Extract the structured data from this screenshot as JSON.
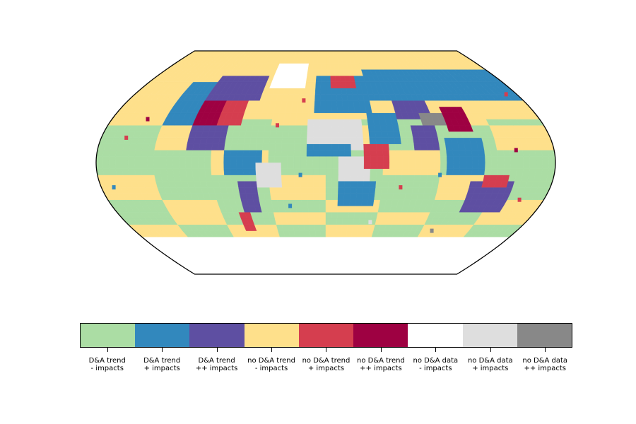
{
  "map": {
    "projection": "robinson",
    "category_keys": [
      "ga",
      "bl",
      "pu",
      "ye",
      "rd",
      "mr",
      "wh",
      "lg",
      "dg"
    ],
    "categories": [
      {
        "key": "ga",
        "line1": "D&A trend",
        "line2": "- impacts",
        "color": "#abdda4"
      },
      {
        "key": "bl",
        "line1": "D&A trend",
        "line2": "+ impacts",
        "color": "#3288bd"
      },
      {
        "key": "pu",
        "line1": "D&A trend",
        "line2": "++ impacts",
        "color": "#5e4fa2"
      },
      {
        "key": "ye",
        "line1": "no D&A trend",
        "line2": "- impacts",
        "color": "#fee08b"
      },
      {
        "key": "rd",
        "line1": "no D&A trend",
        "line2": "+ impacts",
        "color": "#d53e4f"
      },
      {
        "key": "mr",
        "line1": "no D&A trend",
        "line2": "++ impacts",
        "color": "#9e0142"
      },
      {
        "key": "wh",
        "line1": "no D&A data",
        "line2": "- impacts",
        "color": "#ffffff"
      },
      {
        "key": "lg",
        "line1": "no D&A data",
        "line2": "+ impacts",
        "color": "#dedede"
      },
      {
        "key": "dg",
        "line1": "no D&A data",
        "line2": "++ impacts",
        "color": "#888888"
      }
    ],
    "regions": [
      {
        "name": "south-ocean-white",
        "cat": "wh",
        "lon": [
          -180,
          180
        ],
        "lat": [
          -90,
          -58
        ]
      },
      {
        "name": "north-america-west",
        "cat": "bl",
        "lon": [
          -135,
          -110
        ],
        "lat": [
          30,
          65
        ]
      },
      {
        "name": "north-america-central",
        "cat": "mr",
        "lon": [
          -110,
          -88
        ],
        "lat": [
          30,
          52
        ]
      },
      {
        "name": "north-america-east",
        "cat": "rd",
        "lon": [
          -88,
          -70
        ],
        "lat": [
          30,
          48
        ]
      },
      {
        "name": "canada-north",
        "cat": "pu",
        "lon": [
          -110,
          -60
        ],
        "lat": [
          50,
          68
        ]
      },
      {
        "name": "central-america",
        "cat": "pu",
        "lon": [
          -110,
          -82
        ],
        "lat": [
          10,
          28
        ]
      },
      {
        "name": "greenland",
        "cat": "wh",
        "lon": [
          -55,
          -22
        ],
        "lat": [
          62,
          82
        ]
      },
      {
        "name": "south-america-north",
        "cat": "bl",
        "lon": [
          -78,
          -50
        ],
        "lat": [
          -12,
          10
        ]
      },
      {
        "name": "south-america-east",
        "cat": "lg",
        "lon": [
          -55,
          -36
        ],
        "lat": [
          -20,
          -2
        ]
      },
      {
        "name": "south-america-south",
        "cat": "pu",
        "lon": [
          -72,
          -55
        ],
        "lat": [
          -40,
          -15
        ]
      },
      {
        "name": "south-america-tip",
        "cat": "rd",
        "lon": [
          -75,
          -65
        ],
        "lat": [
          -55,
          -38
        ]
      },
      {
        "name": "europe",
        "cat": "bl",
        "lon": [
          -10,
          40
        ],
        "lat": [
          40,
          70
        ]
      },
      {
        "name": "scandinavia",
        "cat": "rd",
        "lon": [
          5,
          30
        ],
        "lat": [
          58,
          70
        ]
      },
      {
        "name": "north-africa",
        "cat": "lg",
        "lon": [
          -15,
          30
        ],
        "lat": [
          12,
          35
        ]
      },
      {
        "name": "west-africa",
        "cat": "bl",
        "lon": [
          -15,
          20
        ],
        "lat": [
          4,
          14
        ]
      },
      {
        "name": "central-africa",
        "cat": "lg",
        "lon": [
          10,
          35
        ],
        "lat": [
          -15,
          5
        ]
      },
      {
        "name": "east-africa",
        "cat": "rd",
        "lon": [
          30,
          50
        ],
        "lat": [
          -5,
          15
        ]
      },
      {
        "name": "southern-africa",
        "cat": "bl",
        "lon": [
          12,
          38
        ],
        "lat": [
          -35,
          -15
        ]
      },
      {
        "name": "middle-east",
        "cat": "bl",
        "lon": [
          35,
          60
        ],
        "lat": [
          15,
          40
        ]
      },
      {
        "name": "russia",
        "cat": "bl",
        "lon": [
          40,
          180
        ],
        "lat": [
          50,
          75
        ]
      },
      {
        "name": "central-asia",
        "cat": "pu",
        "lon": [
          60,
          90
        ],
        "lat": [
          35,
          50
        ]
      },
      {
        "name": "tibet",
        "cat": "dg",
        "lon": [
          80,
          100
        ],
        "lat": [
          28,
          38
        ]
      },
      {
        "name": "china",
        "cat": "mr",
        "lon": [
          100,
          120
        ],
        "lat": [
          25,
          45
        ]
      },
      {
        "name": "india",
        "cat": "pu",
        "lon": [
          70,
          90
        ],
        "lat": [
          8,
          28
        ]
      },
      {
        "name": "southeast-asia",
        "cat": "bl",
        "lon": [
          95,
          125
        ],
        "lat": [
          -8,
          20
        ]
      },
      {
        "name": "australia",
        "cat": "pu",
        "lon": [
          115,
          150
        ],
        "lat": [
          -38,
          -15
        ]
      },
      {
        "name": "australia-north",
        "cat": "rd",
        "lon": [
          125,
          145
        ],
        "lat": [
          -18,
          -11
        ]
      }
    ],
    "scatter_cells": [
      {
        "cat": "rd",
        "lon": -160,
        "lat": 20
      },
      {
        "cat": "mr",
        "lon": -150,
        "lat": 35
      },
      {
        "cat": "rd",
        "lon": -40,
        "lat": 30
      },
      {
        "cat": "bl",
        "lon": -20,
        "lat": -10
      },
      {
        "cat": "rd",
        "lon": 60,
        "lat": -20
      },
      {
        "cat": "bl",
        "lon": 90,
        "lat": -10
      },
      {
        "cat": "rd",
        "lon": 160,
        "lat": -30
      },
      {
        "cat": "bl",
        "lon": -170,
        "lat": -20
      },
      {
        "cat": "lg",
        "lon": 40,
        "lat": -48
      },
      {
        "cat": "dg",
        "lon": 100,
        "lat": -55
      },
      {
        "cat": "rd",
        "lon": -20,
        "lat": 50
      },
      {
        "cat": "mr",
        "lon": 150,
        "lat": 10
      },
      {
        "cat": "rd",
        "lon": 170,
        "lat": 55
      },
      {
        "cat": "bl",
        "lon": -30,
        "lat": -35
      }
    ]
  },
  "colorbar": {
    "ticks": [
      {
        "line1": "D&A trend",
        "line2": "- impacts"
      },
      {
        "line1": "D&A trend",
        "line2": "+ impacts"
      },
      {
        "line1": "D&A trend",
        "line2": "++ impacts"
      },
      {
        "line1": "no D&A trend",
        "line2": "- impacts"
      },
      {
        "line1": "no D&A trend",
        "line2": "+ impacts"
      },
      {
        "line1": "no D&A trend",
        "line2": "++ impacts"
      },
      {
        "line1": "no D&A data",
        "line2": "- impacts"
      },
      {
        "line1": "no D&A data",
        "line2": "+ impacts"
      },
      {
        "line1": "no D&A data",
        "line2": "++ impacts"
      }
    ]
  }
}
